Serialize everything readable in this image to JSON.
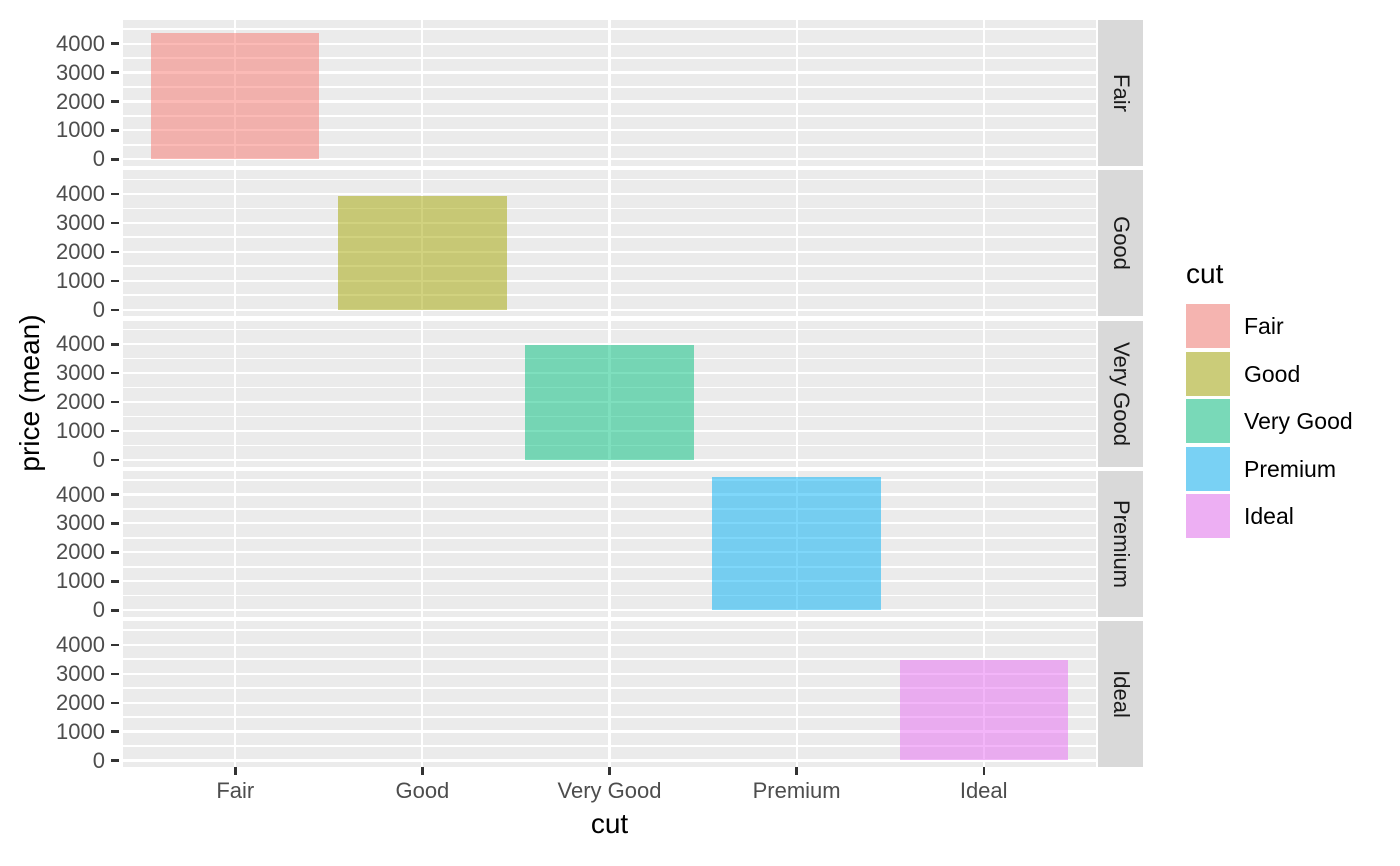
{
  "chart_data": {
    "type": "bar",
    "title": "",
    "xlabel": "cut",
    "ylabel": "price (mean)",
    "categories": [
      "Fair",
      "Good",
      "Very Good",
      "Premium",
      "Ideal"
    ],
    "values": [
      4359,
      3929,
      3982,
      4584,
      3458
    ],
    "facet_labels": [
      "Fair",
      "Good",
      "Very Good",
      "Premium",
      "Ideal"
    ],
    "x_tick_labels": [
      "Fair",
      "Good",
      "Very Good",
      "Premium",
      "Ideal"
    ],
    "y_tick_labels": [
      "0",
      "1000",
      "2000",
      "3000",
      "4000"
    ],
    "y_ticks": [
      0,
      1000,
      2000,
      3000,
      4000
    ],
    "y_minor_ticks": [
      500,
      1500,
      2500,
      3500,
      4500
    ],
    "ylim": [
      -229.2,
      4813.5
    ],
    "grid": true,
    "legend": {
      "title": "cut",
      "position": "right",
      "entries": [
        "Fair",
        "Good",
        "Very Good",
        "Premium",
        "Ideal"
      ]
    },
    "series_colors": [
      "#F8766D",
      "#A3A500",
      "#00BF7D",
      "#00B0F6",
      "#E76BF3"
    ],
    "fill_alpha": 0.5
  },
  "theme": {
    "background": "#FFFFFF",
    "panel_background": "#EBEBEB",
    "strip_background": "#D9D9D9",
    "grid_color": "#FFFFFF",
    "tick_color": "#333333",
    "tick_label_color": "#4D4D4D",
    "strip_text_color": "#1A1A1A",
    "title_color": "#000000"
  }
}
